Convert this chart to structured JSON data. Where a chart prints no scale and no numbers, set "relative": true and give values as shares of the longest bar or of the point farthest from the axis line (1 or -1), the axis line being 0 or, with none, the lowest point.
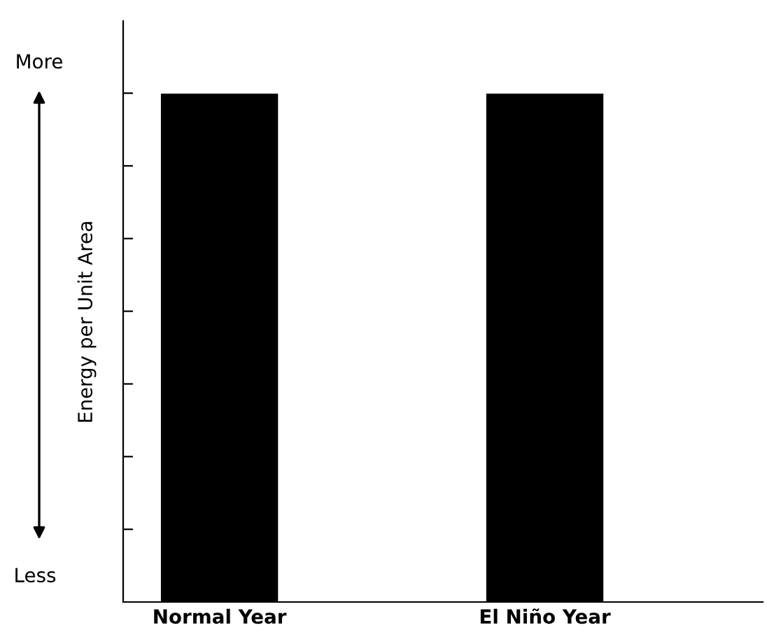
{
  "chart_data": {
    "type": "bar",
    "relative": true,
    "ylabel": "Energy per Unit Area",
    "categories": [
      "Normal Year",
      "El Niño Year"
    ],
    "values": [
      1,
      1
    ],
    "color": "#000000",
    "annotations": [
      "More",
      "Less"
    ]
  }
}
